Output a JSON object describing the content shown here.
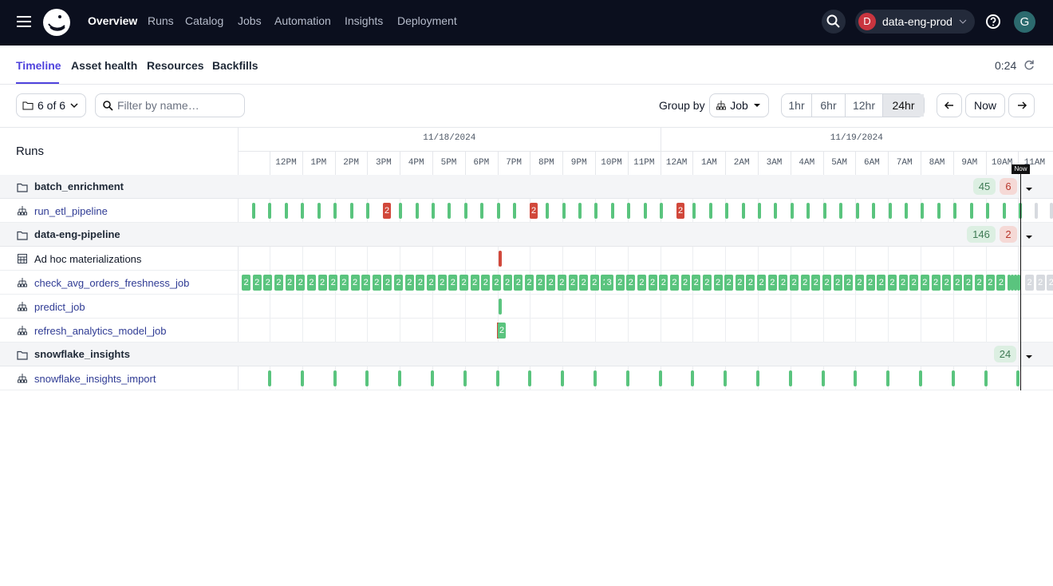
{
  "nav": {
    "items": [
      "Overview",
      "Runs",
      "Catalog",
      "Jobs",
      "Automation",
      "Insights",
      "Deployment"
    ],
    "org_initial": "D",
    "org": "data-eng-prod",
    "avatar": "G"
  },
  "tabs": [
    "Timeline",
    "Asset health",
    "Resources",
    "Backfills"
  ],
  "clock": "0:24",
  "toolbar": {
    "folders": "6 of 6",
    "filter_placeholder": "Filter by name…",
    "group_by_label": "Group by",
    "group": "Job",
    "ranges": [
      "1hr",
      "6hr",
      "12hr",
      "24hr"
    ],
    "now": "Now"
  },
  "timeline": {
    "header": "Runs",
    "dates": [
      "11/18/2024",
      "11/19/2024"
    ],
    "hours": [
      "12PM",
      "1PM",
      "2PM",
      "3PM",
      "4PM",
      "5PM",
      "6PM",
      "7PM",
      "8PM",
      "9PM",
      "10PM",
      "11PM",
      "12AM",
      "1AM",
      "2AM",
      "3AM",
      "4AM",
      "5AM",
      "6AM",
      "7AM",
      "8AM",
      "9AM",
      "10AM",
      "11AM"
    ],
    "now_label": "Now",
    "groups": [
      {
        "name": "batch_enrichment",
        "succeeded": 45,
        "failed": 6,
        "rows": [
          {
            "name": "run_etl_pipeline",
            "markers": [
              2,
              2,
              2
            ]
          }
        ]
      },
      {
        "name": "data-eng-pipeline",
        "succeeded": 146,
        "failed": 2,
        "rows": [
          {
            "name": "Ad hoc materializations"
          },
          {
            "name": "check_avg_orders_freshness_job",
            "markers": [
              2,
              2,
              2,
              2,
              2,
              2,
              2,
              2,
              2,
              2,
              2,
              2,
              2,
              2,
              2,
              2,
              2,
              2,
              2,
              2,
              2,
              2,
              2,
              2,
              2,
              2,
              2,
              2,
              2,
              2,
              2,
              2,
              2,
              2,
              3,
              2,
              2,
              2,
              2,
              2,
              2,
              2,
              2,
              2,
              2,
              2,
              2,
              2,
              2,
              2,
              2,
              2,
              2,
              2,
              2,
              2,
              2,
              2,
              2,
              2,
              2,
              2,
              2,
              2,
              2,
              2,
              2,
              2,
              2,
              2,
              2,
              2,
              2,
              2
            ]
          },
          {
            "name": "predict_job"
          },
          {
            "name": "refresh_analytics_model_job",
            "markers": [
              2
            ]
          }
        ]
      },
      {
        "name": "snowflake_insights",
        "succeeded": 24,
        "rows": [
          {
            "name": "snowflake_insights_import"
          }
        ]
      }
    ]
  }
}
